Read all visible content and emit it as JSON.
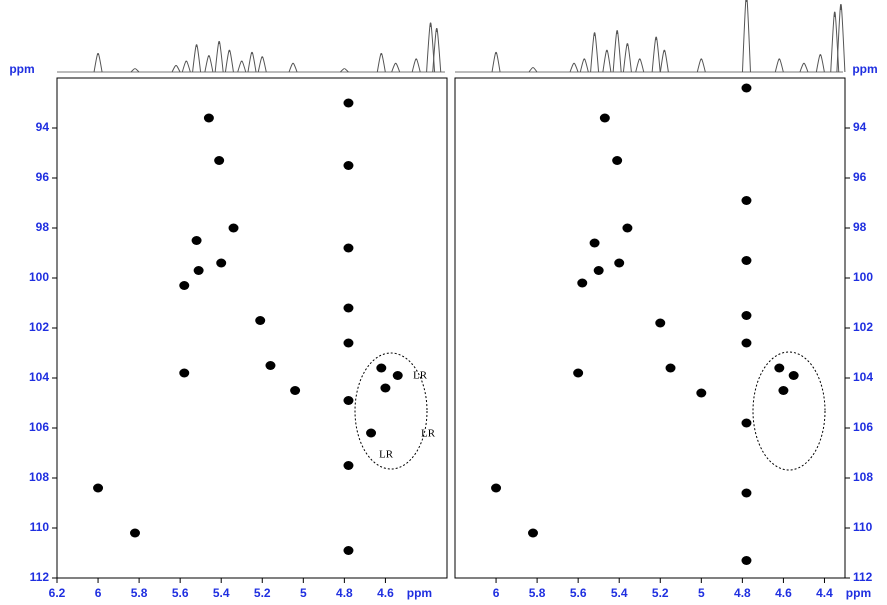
{
  "chart_data": [
    {
      "type": "scatter",
      "x_label": "ppm",
      "y_label": "ppm",
      "xlim": [
        6.2,
        4.3
      ],
      "ylim": [
        92,
        112
      ],
      "xticks": [
        6.2,
        6.0,
        5.8,
        5.6,
        5.4,
        5.2,
        5.0,
        4.8,
        4.6
      ],
      "yticks": [
        94,
        96,
        98,
        100,
        102,
        104,
        106,
        108,
        110,
        112
      ],
      "x": [
        5.46,
        5.41,
        5.34,
        5.52,
        5.4,
        5.51,
        5.58,
        5.21,
        5.16,
        5.04,
        5.58,
        6.0,
        5.82,
        4.62,
        4.6,
        4.54,
        4.67,
        4.78,
        4.78,
        4.78,
        4.78,
        4.78,
        4.78,
        4.78,
        4.78
      ],
      "y": [
        93.6,
        95.3,
        98.0,
        98.5,
        99.4,
        99.7,
        100.3,
        101.7,
        103.5,
        104.5,
        103.8,
        108.4,
        110.2,
        103.6,
        104.4,
        103.9,
        106.2,
        93.0,
        95.5,
        98.8,
        101.2,
        102.6,
        104.9,
        107.5,
        110.9
      ],
      "annotations": [
        "LR",
        "LR",
        "LR"
      ],
      "projection": {
        "x": [
          6.0,
          5.82,
          5.62,
          5.57,
          5.52,
          5.46,
          5.41,
          5.36,
          5.3,
          5.25,
          5.2,
          5.05,
          4.8,
          4.62,
          4.55,
          4.45,
          4.38,
          4.35
        ],
        "values": [
          17,
          3,
          6,
          10,
          25,
          15,
          28,
          20,
          10,
          18,
          14,
          8,
          3,
          17,
          8,
          12,
          45,
          40
        ]
      }
    },
    {
      "type": "scatter",
      "x_label": "ppm",
      "y_label": "ppm",
      "xlim": [
        6.2,
        4.3
      ],
      "ylim": [
        92,
        112
      ],
      "xticks": [
        6.0,
        5.8,
        5.6,
        5.4,
        5.2,
        5.0,
        4.8,
        4.6,
        4.4
      ],
      "yticks": [
        94,
        96,
        98,
        100,
        102,
        104,
        106,
        108,
        110,
        112
      ],
      "x": [
        5.47,
        5.41,
        5.36,
        5.52,
        5.4,
        5.5,
        5.58,
        5.2,
        5.15,
        5.0,
        5.6,
        6.0,
        5.82,
        4.62,
        4.6,
        4.55,
        4.78,
        4.78,
        4.78,
        4.78,
        4.78,
        4.78,
        4.78,
        4.78
      ],
      "y": [
        93.6,
        95.3,
        98.0,
        98.6,
        99.4,
        99.7,
        100.2,
        101.8,
        103.6,
        104.6,
        103.8,
        108.4,
        110.2,
        103.6,
        104.5,
        103.9,
        92.4,
        96.9,
        99.3,
        101.5,
        102.6,
        105.8,
        108.6,
        111.3
      ],
      "projection": {
        "x": [
          6.0,
          5.82,
          5.62,
          5.57,
          5.52,
          5.46,
          5.41,
          5.36,
          5.3,
          5.22,
          5.18,
          5.0,
          4.78,
          4.62,
          4.5,
          4.42,
          4.35,
          4.32
        ],
        "values": [
          18,
          4,
          8,
          12,
          36,
          20,
          38,
          26,
          12,
          32,
          20,
          12,
          70,
          12,
          8,
          16,
          55,
          62
        ]
      }
    }
  ]
}
